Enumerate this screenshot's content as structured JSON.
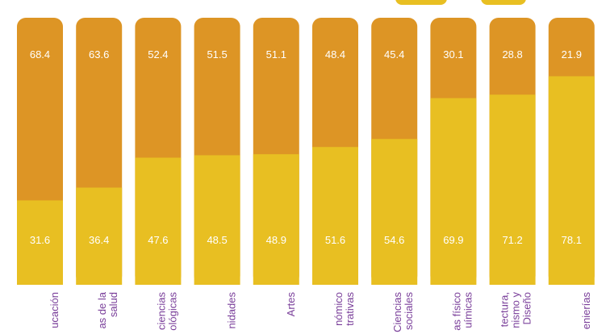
{
  "chart_data": {
    "type": "bar",
    "stacked": true,
    "percent": true,
    "ylim": [
      0,
      100
    ],
    "categories": [
      [
        "ucación"
      ],
      [
        "as de la",
        "salud"
      ],
      [
        "ciencias",
        "ológicas"
      ],
      [
        "nidades"
      ],
      [
        "Artes"
      ],
      [
        "nómico",
        "trativas"
      ],
      [
        "Ciencias",
        "sociales"
      ],
      [
        "as físico",
        "uímicas"
      ],
      [
        "tectura,",
        "nismo y",
        "Diseño"
      ],
      [
        "enierías"
      ]
    ],
    "series": [
      {
        "values": [
          31.6,
          36.4,
          47.6,
          48.5,
          48.9,
          51.6,
          54.6,
          69.9,
          71.2,
          78.1
        ]
      },
      {
        "values": [
          68.4,
          63.6,
          52.4,
          51.5,
          51.1,
          48.4,
          45.4,
          30.1,
          28.8,
          21.9
        ]
      }
    ],
    "colors": {
      "series_bottom": "#e8bf22",
      "series_top": "#dd9525",
      "label_text": "#ffffff",
      "category_text": "#7a3f9a",
      "legend_swatch": "#e8bf22"
    },
    "legend": "top-right"
  }
}
